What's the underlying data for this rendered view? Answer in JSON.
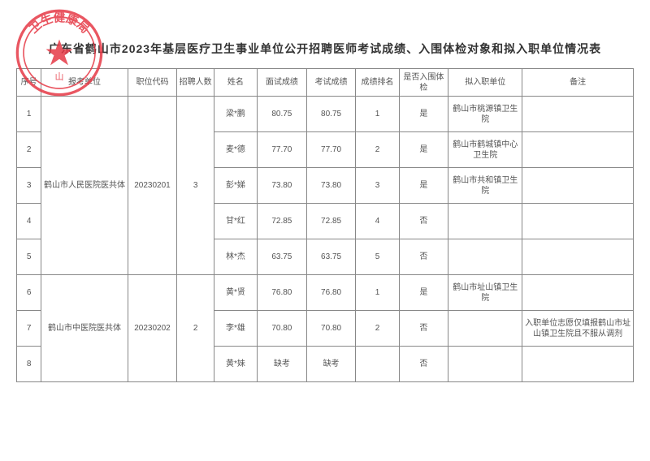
{
  "title": "广东省鹤山市2023年基层医疗卫生事业单位公开招聘医师考试成绩、入围体检对象和拟入职单位情况表",
  "headers": {
    "seq": "序号",
    "unit": "报考单位",
    "code": "职位代码",
    "count": "招聘人数",
    "name": "姓名",
    "interview": "面试成绩",
    "exam": "考试成绩",
    "rank": "成绩排名",
    "physical": "是否入围体检",
    "dest": "拟入职单位",
    "note": "备注"
  },
  "groups": [
    {
      "unit": "鹤山市人民医院医共体",
      "code": "20230201",
      "count": "3",
      "rows": [
        {
          "seq": "1",
          "name": "梁*鹏",
          "s1": "80.75",
          "s2": "80.75",
          "rank": "1",
          "phy": "是",
          "dest": "鹤山市桃源镇卫生院",
          "note": ""
        },
        {
          "seq": "2",
          "name": "麦*德",
          "s1": "77.70",
          "s2": "77.70",
          "rank": "2",
          "phy": "是",
          "dest": "鹤山市鹤城镇中心卫生院",
          "note": ""
        },
        {
          "seq": "3",
          "name": "彭*娣",
          "s1": "73.80",
          "s2": "73.80",
          "rank": "3",
          "phy": "是",
          "dest": "鹤山市共和镇卫生院",
          "note": ""
        },
        {
          "seq": "4",
          "name": "甘*红",
          "s1": "72.85",
          "s2": "72.85",
          "rank": "4",
          "phy": "否",
          "dest": "",
          "note": ""
        },
        {
          "seq": "5",
          "name": "林*杰",
          "s1": "63.75",
          "s2": "63.75",
          "rank": "5",
          "phy": "否",
          "dest": "",
          "note": ""
        }
      ]
    },
    {
      "unit": "鹤山市中医院医共体",
      "code": "20230202",
      "count": "2",
      "rows": [
        {
          "seq": "6",
          "name": "黄*贤",
          "s1": "76.80",
          "s2": "76.80",
          "rank": "1",
          "phy": "是",
          "dest": "鹤山市址山镇卫生院",
          "note": ""
        },
        {
          "seq": "7",
          "name": "李*雄",
          "s1": "70.80",
          "s2": "70.80",
          "rank": "2",
          "phy": "否",
          "dest": "",
          "note": "入职单位志愿仅填报鹤山市址山镇卫生院且不服从调剂"
        },
        {
          "seq": "8",
          "name": "黄*妹",
          "s1": "缺考",
          "s2": "缺考",
          "rank": "",
          "phy": "否",
          "dest": "",
          "note": ""
        }
      ]
    }
  ],
  "stamp": {
    "outer_color": "#e63946",
    "text": "卫生健康局",
    "star_color": "#e63946"
  }
}
